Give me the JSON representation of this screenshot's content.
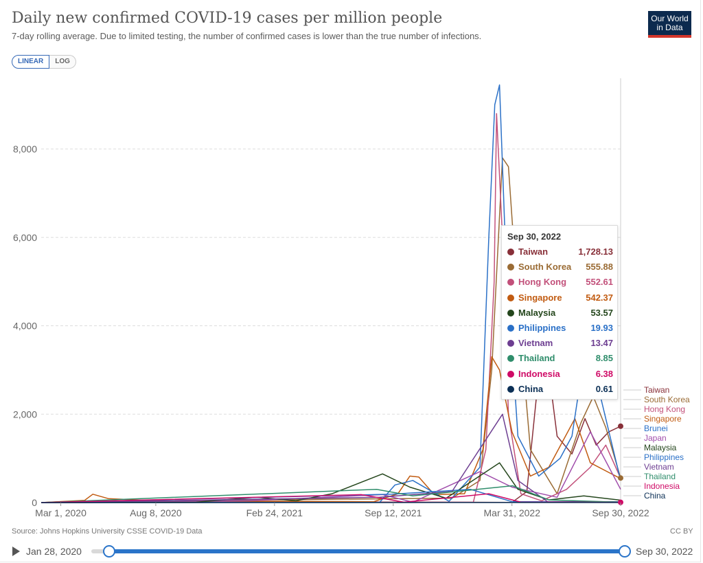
{
  "header": {
    "title": "Daily new confirmed COVID-19 cases per million people",
    "subtitle": "7-day rolling average. Due to limited testing, the number of confirmed cases is lower than the true number of infections.",
    "logo_line1": "Our World",
    "logo_line2": "in Data"
  },
  "controls": {
    "linear_label": "LINEAR",
    "log_label": "LOG",
    "active": "LINEAR"
  },
  "footer": {
    "source": "Source: Johns Hopkins University CSSE COVID-19 Data",
    "license": "CC BY"
  },
  "timeline": {
    "start_label": "Jan 28, 2020",
    "end_label": "Sep 30, 2022"
  },
  "tooltip": {
    "date": "Sep 30, 2022",
    "rows": [
      {
        "name": "Taiwan",
        "value": "1,728.13",
        "color": "#883039"
      },
      {
        "name": "South Korea",
        "value": "555.88",
        "color": "#9a6b34"
      },
      {
        "name": "Hong Kong",
        "value": "552.61",
        "color": "#c2507a"
      },
      {
        "name": "Singapore",
        "value": "542.37",
        "color": "#c15b11"
      },
      {
        "name": "Malaysia",
        "value": "53.57",
        "color": "#24461c"
      },
      {
        "name": "Philippines",
        "value": "19.93",
        "color": "#2a70c7"
      },
      {
        "name": "Vietnam",
        "value": "13.47",
        "color": "#6d3e91"
      },
      {
        "name": "Thailand",
        "value": "8.85",
        "color": "#2f8d6b"
      },
      {
        "name": "Indonesia",
        "value": "6.38",
        "color": "#cf0a66"
      },
      {
        "name": "China",
        "value": "0.61",
        "color": "#0b2f55"
      }
    ]
  },
  "chart_data": {
    "type": "line",
    "title": "Daily new confirmed COVID-19 cases per million people",
    "ylim": [
      0,
      9600
    ],
    "yticks": [
      0,
      2000,
      4000,
      6000,
      8000
    ],
    "ytick_labels": [
      "0",
      "2,000",
      "4,000",
      "6,000",
      "8,000"
    ],
    "xlim": [
      "2020-01-28",
      "2022-09-30"
    ],
    "xticks": [
      "2020-03-01",
      "2020-08-08",
      "2021-02-24",
      "2021-09-12",
      "2022-03-31",
      "2022-09-30"
    ],
    "xtick_labels": [
      "Mar 1, 2020",
      "Aug 8, 2020",
      "Feb 24, 2021",
      "Sep 12, 2021",
      "Mar 31, 2022",
      "Sep 30, 2022"
    ],
    "grid": "horizontal",
    "legend": "right, end labels",
    "series": [
      {
        "name": "Taiwan",
        "color": "#883039",
        "points": [
          [
            "2020-01-28",
            0
          ],
          [
            "2021-05-20",
            15
          ],
          [
            "2022-03-31",
            5
          ],
          [
            "2022-04-25",
            250
          ],
          [
            "2022-05-15",
            2900
          ],
          [
            "2022-05-30",
            3200
          ],
          [
            "2022-06-15",
            1500
          ],
          [
            "2022-07-10",
            1100
          ],
          [
            "2022-08-01",
            1900
          ],
          [
            "2022-08-20",
            1300
          ],
          [
            "2022-09-10",
            1600
          ],
          [
            "2022-09-30",
            1728
          ]
        ]
      },
      {
        "name": "South Korea",
        "color": "#9a6b34",
        "points": [
          [
            "2020-01-28",
            0
          ],
          [
            "2020-03-01",
            20
          ],
          [
            "2021-12-20",
            100
          ],
          [
            "2022-02-05",
            500
          ],
          [
            "2022-02-25",
            3000
          ],
          [
            "2022-03-15",
            7800
          ],
          [
            "2022-03-25",
            7600
          ],
          [
            "2022-04-10",
            4500
          ],
          [
            "2022-05-01",
            1200
          ],
          [
            "2022-06-15",
            200
          ],
          [
            "2022-07-25",
            1800
          ],
          [
            "2022-08-15",
            2400
          ],
          [
            "2022-09-05",
            1700
          ],
          [
            "2022-09-30",
            556
          ]
        ]
      },
      {
        "name": "Hong Kong",
        "color": "#c2507a",
        "points": [
          [
            "2020-01-28",
            0
          ],
          [
            "2022-01-25",
            10
          ],
          [
            "2022-02-15",
            1200
          ],
          [
            "2022-03-01",
            5000
          ],
          [
            "2022-03-05",
            8800
          ],
          [
            "2022-03-15",
            6000
          ],
          [
            "2022-03-25",
            2000
          ],
          [
            "2022-04-15",
            200
          ],
          [
            "2022-05-20",
            40
          ],
          [
            "2022-07-01",
            300
          ],
          [
            "2022-08-10",
            800
          ],
          [
            "2022-09-05",
            1300
          ],
          [
            "2022-09-30",
            553
          ]
        ]
      },
      {
        "name": "Singapore",
        "color": "#c15b11",
        "points": [
          [
            "2020-01-28",
            0
          ],
          [
            "2020-04-10",
            50
          ],
          [
            "2020-04-24",
            190
          ],
          [
            "2020-05-20",
            90
          ],
          [
            "2020-08-08",
            40
          ],
          [
            "2021-08-10",
            20
          ],
          [
            "2021-09-20",
            200
          ],
          [
            "2021-10-10",
            600
          ],
          [
            "2021-10-25",
            580
          ],
          [
            "2021-11-20",
            180
          ],
          [
            "2022-01-10",
            200
          ],
          [
            "2022-02-10",
            1200
          ],
          [
            "2022-02-25",
            3300
          ],
          [
            "2022-03-10",
            3000
          ],
          [
            "2022-03-31",
            1600
          ],
          [
            "2022-05-01",
            600
          ],
          [
            "2022-06-01",
            800
          ],
          [
            "2022-07-15",
            1900
          ],
          [
            "2022-08-10",
            900
          ],
          [
            "2022-09-30",
            542
          ]
        ]
      },
      {
        "name": "Brunei",
        "color": "#2a70c7",
        "points": [
          [
            "2020-01-28",
            0
          ],
          [
            "2021-08-20",
            5
          ],
          [
            "2021-09-15",
            400
          ],
          [
            "2021-10-15",
            500
          ],
          [
            "2021-12-15",
            30
          ],
          [
            "2022-02-05",
            800
          ],
          [
            "2022-02-20",
            6000
          ],
          [
            "2022-03-02",
            9000
          ],
          [
            "2022-03-10",
            9450
          ],
          [
            "2022-03-20",
            5800
          ],
          [
            "2022-04-10",
            1500
          ],
          [
            "2022-05-15",
            600
          ],
          [
            "2022-06-20",
            1000
          ],
          [
            "2022-07-10",
            1500
          ],
          [
            "2022-08-05",
            3800
          ],
          [
            "2022-08-20",
            2800
          ],
          [
            "2022-09-30",
            500
          ]
        ]
      },
      {
        "name": "Japan",
        "color": "#a04dab",
        "points": [
          [
            "2020-01-28",
            0
          ],
          [
            "2021-01-10",
            40
          ],
          [
            "2021-08-25",
            180
          ],
          [
            "2021-10-15",
            10
          ],
          [
            "2022-02-05",
            700
          ],
          [
            "2022-03-31",
            350
          ],
          [
            "2022-06-15",
            120
          ],
          [
            "2022-08-10",
            1600
          ],
          [
            "2022-09-30",
            300
          ]
        ]
      },
      {
        "name": "Malaysia",
        "color": "#24461c",
        "points": [
          [
            "2020-01-28",
            0
          ],
          [
            "2020-10-15",
            10
          ],
          [
            "2021-01-25",
            120
          ],
          [
            "2021-04-01",
            40
          ],
          [
            "2021-06-01",
            200
          ],
          [
            "2021-08-25",
            650
          ],
          [
            "2021-10-10",
            350
          ],
          [
            "2021-12-10",
            100
          ],
          [
            "2022-03-10",
            900
          ],
          [
            "2022-04-10",
            300
          ],
          [
            "2022-06-01",
            60
          ],
          [
            "2022-07-30",
            150
          ],
          [
            "2022-09-30",
            54
          ]
        ]
      },
      {
        "name": "Philippines",
        "color": "#2a70c7",
        "points": [
          [
            "2020-01-28",
            0
          ],
          [
            "2021-09-10",
            190
          ],
          [
            "2022-01-20",
            300
          ],
          [
            "2022-03-31",
            20
          ],
          [
            "2022-09-30",
            20
          ]
        ]
      },
      {
        "name": "Vietnam",
        "color": "#6d3e91",
        "points": [
          [
            "2020-01-28",
            0
          ],
          [
            "2021-08-20",
            120
          ],
          [
            "2021-12-20",
            250
          ],
          [
            "2022-03-15",
            2000
          ],
          [
            "2022-04-10",
            500
          ],
          [
            "2022-05-30",
            20
          ],
          [
            "2022-09-30",
            13
          ]
        ]
      },
      {
        "name": "Thailand",
        "color": "#2f8d6b",
        "points": [
          [
            "2020-01-28",
            0
          ],
          [
            "2021-08-15",
            300
          ],
          [
            "2021-10-15",
            150
          ],
          [
            "2022-04-01",
            380
          ],
          [
            "2022-06-01",
            60
          ],
          [
            "2022-09-30",
            9
          ]
        ]
      },
      {
        "name": "Indonesia",
        "color": "#cf0a66",
        "points": [
          [
            "2020-01-28",
            0
          ],
          [
            "2021-07-20",
            180
          ],
          [
            "2021-09-30",
            10
          ],
          [
            "2022-02-20",
            200
          ],
          [
            "2022-04-15",
            10
          ],
          [
            "2022-09-30",
            6
          ]
        ]
      },
      {
        "name": "China",
        "color": "#0b2f55",
        "points": [
          [
            "2020-01-28",
            0
          ],
          [
            "2022-09-30",
            1
          ]
        ]
      }
    ],
    "end_labels": [
      "Taiwan",
      "South Korea",
      "Hong Kong",
      "Singapore",
      "Brunei",
      "Japan",
      "Malaysia",
      "Philippines",
      "Vietnam",
      "Thailand",
      "Indonesia",
      "China"
    ],
    "end_label_colors": [
      "#883039",
      "#9a6b34",
      "#c2507a",
      "#c15b11",
      "#2a70c7",
      "#a04dab",
      "#24461c",
      "#2a70c7",
      "#6d3e91",
      "#2f8d6b",
      "#cf0a66",
      "#0b2f55"
    ]
  }
}
